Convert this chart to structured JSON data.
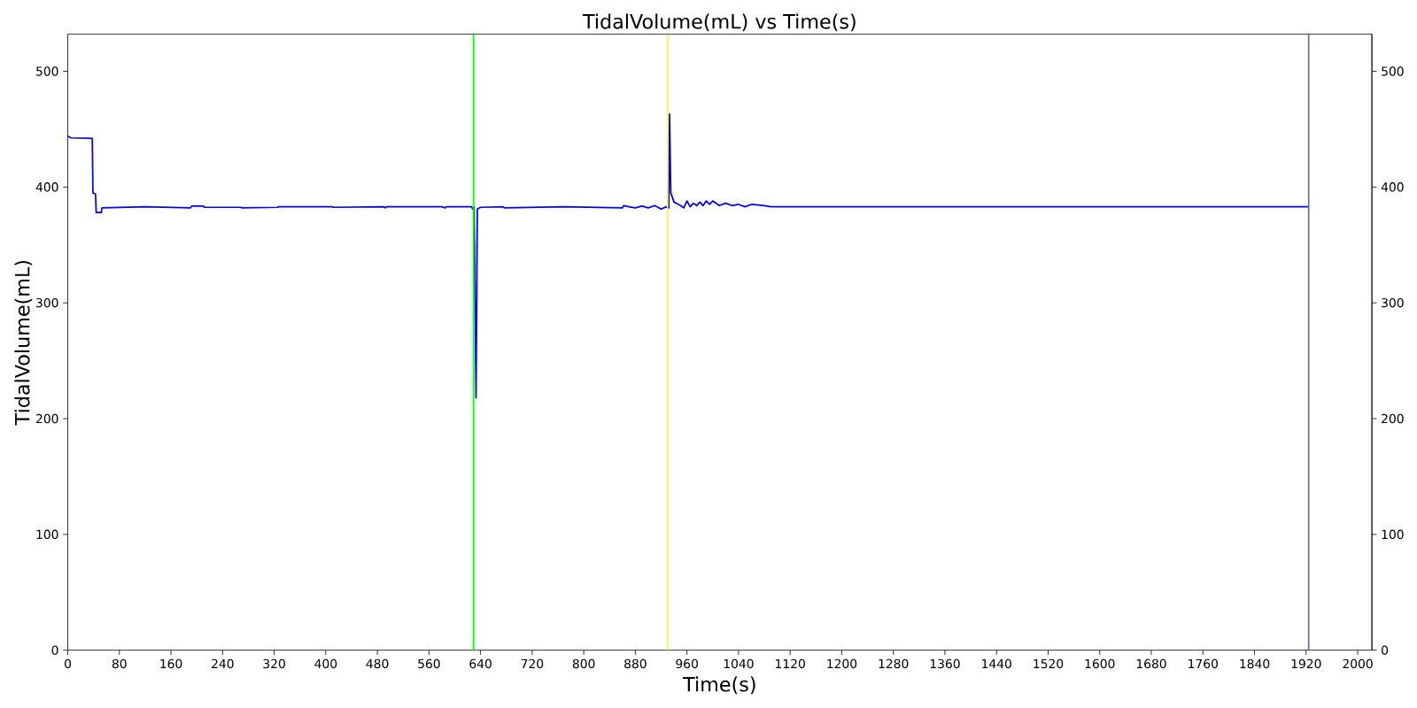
{
  "chart_data": {
    "type": "line",
    "title": "TidalVolume(mL) vs Time(s)",
    "xlabel": "Time(s)",
    "ylabel": "TidalVolume(mL)",
    "x": [
      0,
      3,
      5,
      38,
      39,
      43,
      44,
      52,
      53,
      120,
      190,
      192,
      210,
      212,
      268,
      270,
      325,
      327,
      410,
      412,
      490,
      492,
      494,
      580,
      585,
      587,
      626,
      628,
      630,
      633,
      635,
      640,
      675,
      677,
      770,
      860,
      862,
      870,
      880,
      890,
      900,
      910,
      920,
      928,
      932,
      933,
      935,
      940,
      950,
      955,
      960,
      965,
      970,
      975,
      980,
      985,
      990,
      995,
      1000,
      1010,
      1020,
      1030,
      1040,
      1050,
      1060,
      1080,
      1090,
      1160,
      1320,
      1924
    ],
    "values": [
      444,
      443,
      442.5,
      442,
      395,
      394,
      378,
      378,
      382,
      383,
      382,
      383.5,
      383.5,
      382.5,
      382.5,
      382,
      382.5,
      383,
      383,
      382.5,
      383,
      382,
      383,
      383,
      382,
      383,
      383,
      381,
      383,
      218,
      381,
      382.5,
      383,
      382,
      383,
      382,
      384,
      383,
      382,
      383.5,
      382,
      384,
      381,
      383,
      382,
      463,
      395,
      387,
      384,
      382,
      388,
      383,
      386,
      384,
      387,
      384,
      388,
      385,
      388,
      384,
      386,
      384,
      385,
      383,
      385,
      384,
      383,
      383,
      383,
      383
    ],
    "color": "#0000ff",
    "xlim": [
      0,
      2022
    ],
    "ylim": [
      0,
      532
    ],
    "xticks": [
      0,
      80,
      160,
      240,
      320,
      400,
      480,
      560,
      640,
      720,
      800,
      880,
      960,
      1040,
      1120,
      1200,
      1280,
      1360,
      1440,
      1520,
      1600,
      1680,
      1760,
      1840,
      1920,
      2000
    ],
    "yticks": [
      0,
      100,
      200,
      300,
      400,
      500
    ],
    "y2lim": [
      0,
      532
    ],
    "y2ticks": [
      0,
      100,
      200,
      300,
      400,
      500
    ],
    "ref_lines": [
      {
        "axis": "x",
        "value": 629,
        "color": "#00ff00"
      },
      {
        "axis": "x",
        "value": 930,
        "color": "#ffff00"
      },
      {
        "axis": "x",
        "value": 1924,
        "color": "#6a5acd"
      }
    ],
    "line_style": "solid"
  }
}
